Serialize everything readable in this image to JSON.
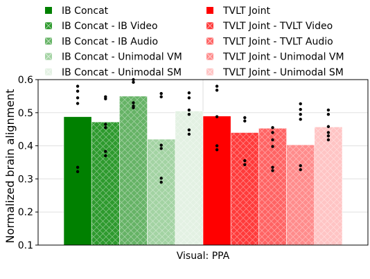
{
  "chart_data": {
    "type": "bar",
    "categories": [
      "Visual: PPA"
    ],
    "xlabel": "Visual: PPA",
    "ylabel": "Normalized brain alignment",
    "ylim": [
      0.1,
      0.6
    ],
    "yticks": [
      "0.1",
      "0.2",
      "0.3",
      "0.4",
      "0.5",
      "0.6"
    ],
    "grid": true,
    "legend_position": "top",
    "series": [
      {
        "name": "IB Concat",
        "value": 0.488,
        "color": "#008000",
        "hatch": false,
        "points": [
          0.58,
          0.565,
          0.545,
          0.528,
          0.335,
          0.322
        ]
      },
      {
        "name": "IB Concat - IB Video",
        "value": 0.472,
        "color": "#2e9a2e",
        "hatch": true,
        "points": [
          0.548,
          0.542,
          0.465,
          0.455,
          0.383,
          0.37
        ]
      },
      {
        "name": "IB Concat - IB Audio",
        "value": 0.55,
        "color": "#66b366",
        "hatch": true,
        "points": [
          0.6,
          0.592,
          0.53,
          0.52,
          0.515
        ]
      },
      {
        "name": "IB Concat - Unimodal VM",
        "value": 0.42,
        "color": "#a3d3a3",
        "hatch": true,
        "points": [
          0.558,
          0.548,
          0.402,
          0.392,
          0.302,
          0.29
        ]
      },
      {
        "name": "IB Concat - Unimodal SM",
        "value": 0.505,
        "color": "#e3f1e3",
        "hatch": true,
        "points": [
          0.56,
          0.545,
          0.508,
          0.495,
          0.448,
          0.435
        ]
      },
      {
        "name": "TVLT Joint",
        "value": 0.49,
        "color": "#ff0000",
        "hatch": false,
        "points": [
          0.58,
          0.568,
          0.488,
          0.4,
          0.388
        ]
      },
      {
        "name": "TVLT Joint - TVLT Video",
        "value": 0.44,
        "color": "#ff3b3b",
        "hatch": true,
        "points": [
          0.485,
          0.475,
          0.355,
          0.343
        ]
      },
      {
        "name": "TVLT Joint - TVLT Audio",
        "value": 0.453,
        "color": "#ff6464",
        "hatch": true,
        "points": [
          0.455,
          0.44,
          0.418,
          0.398,
          0.335,
          0.325
        ]
      },
      {
        "name": "TVLT Joint - Unimodal VM",
        "value": 0.403,
        "color": "#ff8c8c",
        "hatch": true,
        "points": [
          0.527,
          0.51,
          0.495,
          0.48,
          0.34,
          0.328
        ]
      },
      {
        "name": "TVLT Joint - Unimodal SM",
        "value": 0.457,
        "color": "#ffc4c4",
        "hatch": true,
        "points": [
          0.508,
          0.495,
          0.458,
          0.44,
          0.43,
          0.418
        ]
      }
    ]
  }
}
